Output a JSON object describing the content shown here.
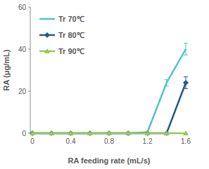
{
  "chart_data": {
    "type": "line",
    "x_label": "RA feeding rate (mL/s)",
    "y_label": "RA (μg/mL)",
    "x": [
      0,
      0.2,
      0.4,
      0.6,
      0.8,
      1.0,
      1.2,
      1.4,
      1.6
    ],
    "xlim": [
      0,
      1.6
    ],
    "xticks": [
      0,
      0.4,
      0.8,
      1.2,
      1.6
    ],
    "ylim": [
      0,
      60
    ],
    "yticks": [
      0,
      20,
      40,
      60
    ],
    "grid": false,
    "legend": "upper left",
    "series": [
      {
        "name": "Tr 70℃",
        "color": "#4fc3c9",
        "marker": "none",
        "values": [
          0,
          0,
          0,
          0,
          0,
          0,
          0.5,
          24,
          40
        ],
        "errors": [
          null,
          null,
          null,
          null,
          null,
          null,
          null,
          1.5,
          2.8
        ]
      },
      {
        "name": "Tr 80℃",
        "color": "#1f5a8c",
        "marker": "diamond",
        "values": [
          0,
          0,
          0,
          0,
          0,
          0,
          0,
          0,
          24
        ],
        "errors": [
          null,
          null,
          null,
          null,
          null,
          null,
          null,
          null,
          2.8
        ]
      },
      {
        "name": "Tr 90℃",
        "color": "#9bc55b",
        "marker": "triangle",
        "values": [
          0,
          0,
          0,
          0,
          0,
          0,
          0,
          0,
          0
        ],
        "errors": [
          null,
          null,
          null,
          null,
          null,
          null,
          null,
          null,
          null
        ]
      }
    ]
  }
}
